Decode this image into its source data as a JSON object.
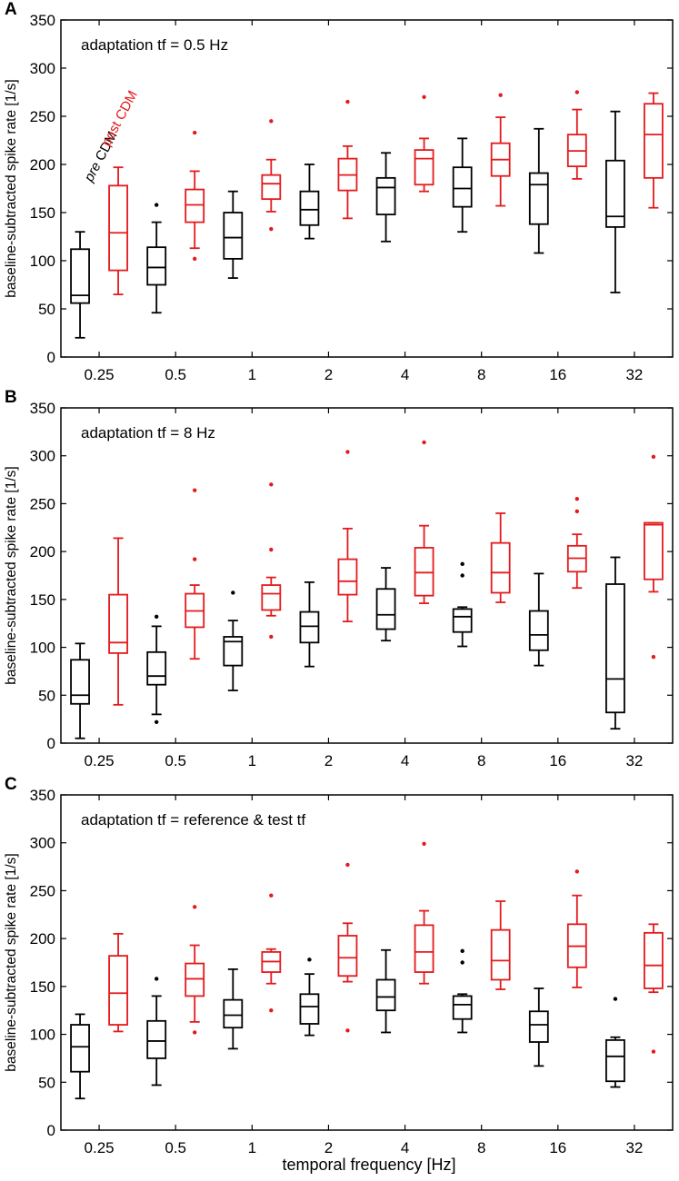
{
  "figure": {
    "xlabel": "temporal frequency [Hz]",
    "legend": {
      "pre": "pre CDM",
      "post": "post CDM"
    },
    "colors": {
      "pre": "#000000",
      "post": "#e41a1c"
    }
  },
  "chart_data": [
    {
      "type": "box",
      "panel_label": "A",
      "annotation": "adaptation tf = 0.5 Hz",
      "ylabel": "baseline-subtracted spike rate [1/s]",
      "ylim": [
        0,
        350
      ],
      "yticks": [
        0,
        50,
        100,
        150,
        200,
        250,
        300,
        350
      ],
      "categories": [
        "0.25",
        "0.5",
        "1",
        "2",
        "4",
        "8",
        "16",
        "32"
      ],
      "series": [
        {
          "name": "pre CDM",
          "boxes": [
            {
              "whislo": 20,
              "q1": 56,
              "med": 64,
              "q3": 112,
              "whishi": 130,
              "fliers": []
            },
            {
              "whislo": 46,
              "q1": 75,
              "med": 93,
              "q3": 114,
              "whishi": 140,
              "fliers": [
                158
              ]
            },
            {
              "whislo": 82,
              "q1": 102,
              "med": 124,
              "q3": 150,
              "whishi": 172,
              "fliers": []
            },
            {
              "whislo": 123,
              "q1": 137,
              "med": 153,
              "q3": 172,
              "whishi": 200,
              "fliers": []
            },
            {
              "whislo": 120,
              "q1": 148,
              "med": 176,
              "q3": 186,
              "whishi": 212,
              "fliers": []
            },
            {
              "whislo": 130,
              "q1": 156,
              "med": 175,
              "q3": 197,
              "whishi": 227,
              "fliers": []
            },
            {
              "whislo": 108,
              "q1": 138,
              "med": 179,
              "q3": 191,
              "whishi": 237,
              "fliers": []
            },
            {
              "whislo": 67,
              "q1": 135,
              "med": 146,
              "q3": 204,
              "whishi": 255,
              "fliers": []
            }
          ]
        },
        {
          "name": "post CDM",
          "boxes": [
            {
              "whislo": 65,
              "q1": 90,
              "med": 129,
              "q3": 178,
              "whishi": 197,
              "fliers": []
            },
            {
              "whislo": 113,
              "q1": 140,
              "med": 158,
              "q3": 174,
              "whishi": 193,
              "fliers": [
                233,
                102
              ]
            },
            {
              "whislo": 151,
              "q1": 164,
              "med": 180,
              "q3": 189,
              "whishi": 205,
              "fliers": [
                245,
                133
              ]
            },
            {
              "whislo": 144,
              "q1": 173,
              "med": 189,
              "q3": 206,
              "whishi": 219,
              "fliers": [
                265
              ]
            },
            {
              "whislo": 172,
              "q1": 179,
              "med": 206,
              "q3": 215,
              "whishi": 227,
              "fliers": [
                270
              ]
            },
            {
              "whislo": 157,
              "q1": 188,
              "med": 205,
              "q3": 222,
              "whishi": 249,
              "fliers": [
                272
              ]
            },
            {
              "whislo": 185,
              "q1": 198,
              "med": 214,
              "q3": 231,
              "whishi": 257,
              "fliers": [
                275
              ]
            },
            {
              "whislo": 155,
              "q1": 186,
              "med": 231,
              "q3": 263,
              "whishi": 274,
              "fliers": []
            }
          ]
        }
      ]
    },
    {
      "type": "box",
      "panel_label": "B",
      "annotation": "adaptation tf = 8 Hz",
      "ylabel": "baseline-subtracted spike rate [1/s]",
      "ylim": [
        0,
        350
      ],
      "yticks": [
        0,
        50,
        100,
        150,
        200,
        250,
        300,
        350
      ],
      "categories": [
        "0.25",
        "0.5",
        "1",
        "2",
        "4",
        "8",
        "16",
        "32"
      ],
      "series": [
        {
          "name": "pre CDM",
          "boxes": [
            {
              "whislo": 5,
              "q1": 41,
              "med": 50,
              "q3": 87,
              "whishi": 104,
              "fliers": []
            },
            {
              "whislo": 30,
              "q1": 61,
              "med": 70,
              "q3": 95,
              "whishi": 122,
              "fliers": [
                132,
                22
              ]
            },
            {
              "whislo": 55,
              "q1": 81,
              "med": 106,
              "q3": 111,
              "whishi": 128,
              "fliers": [
                157
              ]
            },
            {
              "whislo": 80,
              "q1": 105,
              "med": 122,
              "q3": 137,
              "whishi": 168,
              "fliers": []
            },
            {
              "whislo": 107,
              "q1": 119,
              "med": 134,
              "q3": 161,
              "whishi": 183,
              "fliers": []
            },
            {
              "whislo": 101,
              "q1": 116,
              "med": 132,
              "q3": 140,
              "whishi": 142,
              "fliers": [
                187,
                175
              ]
            },
            {
              "whislo": 81,
              "q1": 97,
              "med": 113,
              "q3": 138,
              "whishi": 177,
              "fliers": []
            },
            {
              "whislo": 15,
              "q1": 32,
              "med": 67,
              "q3": 166,
              "whishi": 194,
              "fliers": []
            }
          ]
        },
        {
          "name": "post CDM",
          "boxes": [
            {
              "whislo": 40,
              "q1": 94,
              "med": 105,
              "q3": 155,
              "whishi": 214,
              "fliers": []
            },
            {
              "whislo": 88,
              "q1": 121,
              "med": 138,
              "q3": 156,
              "whishi": 165,
              "fliers": [
                264,
                192
              ]
            },
            {
              "whislo": 133,
              "q1": 139,
              "med": 156,
              "q3": 165,
              "whishi": 173,
              "fliers": [
                270,
                202,
                111
              ]
            },
            {
              "whislo": 127,
              "q1": 155,
              "med": 169,
              "q3": 192,
              "whishi": 224,
              "fliers": [
                304
              ]
            },
            {
              "whislo": 146,
              "q1": 154,
              "med": 178,
              "q3": 204,
              "whishi": 227,
              "fliers": [
                314
              ]
            },
            {
              "whislo": 147,
              "q1": 157,
              "med": 178,
              "q3": 209,
              "whishi": 240,
              "fliers": []
            },
            {
              "whislo": 162,
              "q1": 179,
              "med": 193,
              "q3": 206,
              "whishi": 218,
              "fliers": [
                255,
                242
              ]
            },
            {
              "whislo": 158,
              "q1": 171,
              "med": 228,
              "q3": 230,
              "whishi": 230,
              "fliers": [
                299,
                90
              ]
            }
          ]
        }
      ]
    },
    {
      "type": "box",
      "panel_label": "C",
      "annotation": "adaptation tf = reference & test tf",
      "ylabel": "baseline-subtracted spike rate [1/s]",
      "ylim": [
        0,
        350
      ],
      "yticks": [
        0,
        50,
        100,
        150,
        200,
        250,
        300,
        350
      ],
      "categories": [
        "0.25",
        "0.5",
        "1",
        "2",
        "4",
        "8",
        "16",
        "32"
      ],
      "series": [
        {
          "name": "pre CDM",
          "boxes": [
            {
              "whislo": 33,
              "q1": 61,
              "med": 87,
              "q3": 110,
              "whishi": 121,
              "fliers": []
            },
            {
              "whislo": 47,
              "q1": 75,
              "med": 93,
              "q3": 114,
              "whishi": 140,
              "fliers": [
                158
              ]
            },
            {
              "whislo": 85,
              "q1": 107,
              "med": 120,
              "q3": 136,
              "whishi": 168,
              "fliers": []
            },
            {
              "whislo": 99,
              "q1": 111,
              "med": 129,
              "q3": 142,
              "whishi": 163,
              "fliers": [
                178
              ]
            },
            {
              "whislo": 102,
              "q1": 125,
              "med": 139,
              "q3": 157,
              "whishi": 188,
              "fliers": []
            },
            {
              "whislo": 102,
              "q1": 116,
              "med": 131,
              "q3": 140,
              "whishi": 142,
              "fliers": [
                187,
                175
              ]
            },
            {
              "whislo": 67,
              "q1": 92,
              "med": 110,
              "q3": 124,
              "whishi": 148,
              "fliers": []
            },
            {
              "whislo": 45,
              "q1": 51,
              "med": 77,
              "q3": 94,
              "whishi": 97,
              "fliers": [
                137
              ]
            }
          ]
        },
        {
          "name": "post CDM",
          "boxes": [
            {
              "whislo": 103,
              "q1": 110,
              "med": 143,
              "q3": 182,
              "whishi": 205,
              "fliers": []
            },
            {
              "whislo": 113,
              "q1": 140,
              "med": 158,
              "q3": 174,
              "whishi": 193,
              "fliers": [
                233,
                102
              ]
            },
            {
              "whislo": 153,
              "q1": 165,
              "med": 176,
              "q3": 186,
              "whishi": 189,
              "fliers": [
                245,
                125
              ]
            },
            {
              "whislo": 155,
              "q1": 161,
              "med": 180,
              "q3": 203,
              "whishi": 216,
              "fliers": [
                277,
                104
              ]
            },
            {
              "whislo": 153,
              "q1": 165,
              "med": 186,
              "q3": 214,
              "whishi": 229,
              "fliers": [
                299
              ]
            },
            {
              "whislo": 147,
              "q1": 157,
              "med": 177,
              "q3": 209,
              "whishi": 239,
              "fliers": []
            },
            {
              "whislo": 149,
              "q1": 170,
              "med": 192,
              "q3": 215,
              "whishi": 245,
              "fliers": [
                270
              ]
            },
            {
              "whislo": 144,
              "q1": 148,
              "med": 172,
              "q3": 206,
              "whishi": 215,
              "fliers": [
                82
              ]
            }
          ]
        }
      ]
    }
  ]
}
